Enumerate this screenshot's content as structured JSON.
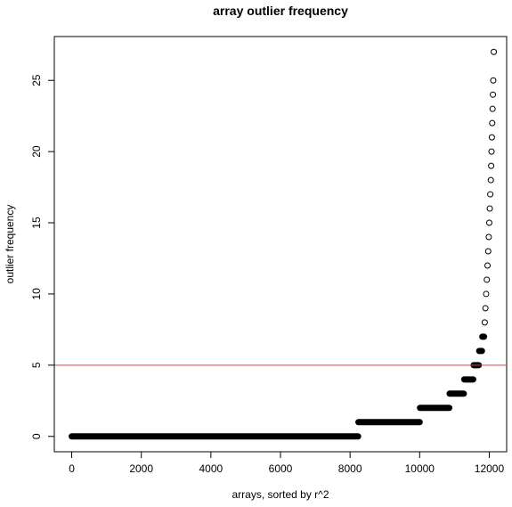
{
  "chart_data": {
    "type": "scatter",
    "title": "array outlier frequency",
    "xlabel": "arrays, sorted by r^2",
    "ylabel": "outlier frequency",
    "xlim": [
      -500,
      12500
    ],
    "ylim": [
      -1.08,
      28.08
    ],
    "xticks": [
      0,
      2000,
      4000,
      6000,
      8000,
      10000,
      12000
    ],
    "xtick_labels": [
      "0",
      "2000",
      "4000",
      "6000",
      "8000",
      "10000",
      "12000"
    ],
    "yticks": [
      0,
      5,
      10,
      15,
      20,
      25
    ],
    "ytick_labels": [
      "0",
      "5",
      "10",
      "15",
      "20",
      "25"
    ],
    "reference_line": {
      "y": 5,
      "color": "#e8403a"
    },
    "point_style": "open-circle",
    "point_color": "#000000",
    "segments": [
      {
        "y": 0,
        "x_start": 0,
        "x_end": 8230
      },
      {
        "y": 1,
        "x_start": 8240,
        "x_end": 10000
      },
      {
        "y": 2,
        "x_start": 10010,
        "x_end": 10850
      },
      {
        "y": 3,
        "x_start": 10860,
        "x_end": 11270
      },
      {
        "y": 4,
        "x_start": 11280,
        "x_end": 11540
      },
      {
        "y": 5,
        "x_start": 11550,
        "x_end": 11700
      },
      {
        "y": 6,
        "x_start": 11710,
        "x_end": 11790
      },
      {
        "y": 7,
        "x_start": 11800,
        "x_end": 11850
      }
    ],
    "points": [
      {
        "x": 11870,
        "y": 8
      },
      {
        "x": 11890,
        "y": 9
      },
      {
        "x": 11910,
        "y": 10
      },
      {
        "x": 11930,
        "y": 11
      },
      {
        "x": 11950,
        "y": 12
      },
      {
        "x": 11970,
        "y": 13
      },
      {
        "x": 11985,
        "y": 14
      },
      {
        "x": 12000,
        "y": 15
      },
      {
        "x": 12015,
        "y": 16
      },
      {
        "x": 12030,
        "y": 17
      },
      {
        "x": 12045,
        "y": 18
      },
      {
        "x": 12055,
        "y": 19
      },
      {
        "x": 12065,
        "y": 20
      },
      {
        "x": 12075,
        "y": 21
      },
      {
        "x": 12085,
        "y": 22
      },
      {
        "x": 12095,
        "y": 23
      },
      {
        "x": 12105,
        "y": 24
      },
      {
        "x": 12115,
        "y": 25
      },
      {
        "x": 12130,
        "y": 27
      }
    ]
  }
}
